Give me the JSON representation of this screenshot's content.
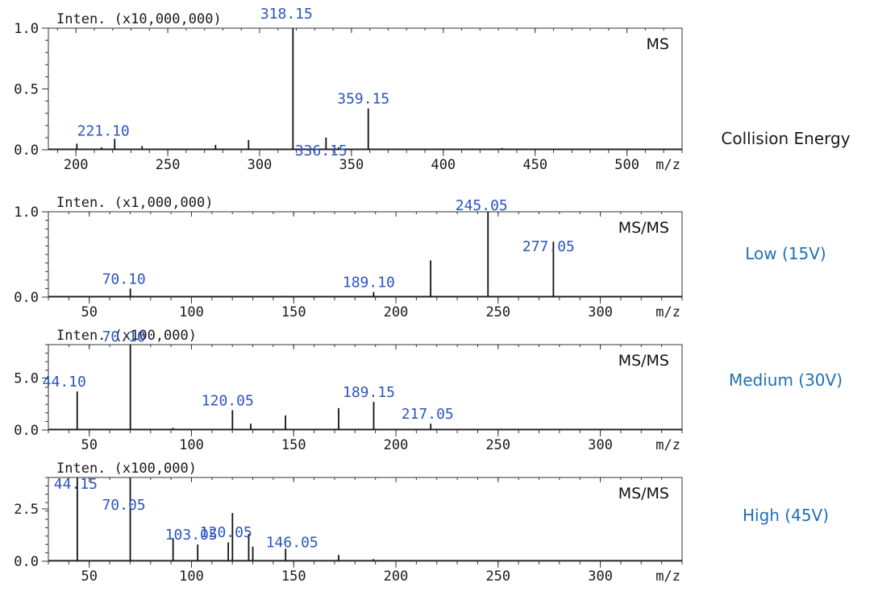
{
  "side_panel": {
    "title": "Collision Energy",
    "levels": [
      "Low (15V)",
      "Medium (30V)",
      "High (45V)"
    ]
  },
  "colors": {
    "trace": "#111111",
    "peak_label": "#2d55c0",
    "energy_label": "#1f6fb8"
  },
  "chart_data": [
    {
      "type": "line",
      "mode_label": "MS",
      "ylabel": "Inten. (x10,000,000)",
      "xlabel": "m/z",
      "xlim": [
        185,
        530
      ],
      "ylim": [
        0,
        1.0
      ],
      "y_ticks": [
        {
          "v": 0,
          "t": "0.0"
        },
        {
          "v": 0.5,
          "t": "0.5"
        },
        {
          "v": 1.0,
          "t": "1.0"
        }
      ],
      "x_ticks": [
        200,
        250,
        300,
        350,
        400,
        450,
        500
      ],
      "peaks": [
        {
          "x": 200.5,
          "y": 0.05
        },
        {
          "x": 214,
          "y": 0.02
        },
        {
          "x": 221.1,
          "y": 0.09
        },
        {
          "x": 236,
          "y": 0.03
        },
        {
          "x": 276,
          "y": 0.04
        },
        {
          "x": 294,
          "y": 0.08
        },
        {
          "x": 318.15,
          "y": 1.0
        },
        {
          "x": 336.15,
          "y": 0.1
        },
        {
          "x": 359.15,
          "y": 0.34
        },
        {
          "x": 343,
          "y": 0.02
        },
        {
          "x": 432,
          "y": 0.015
        }
      ],
      "peak_labels": [
        {
          "text": "221.10",
          "x": 221.1,
          "y": 0.09
        },
        {
          "text": "318.15",
          "x": 318.15,
          "y": 1.0
        },
        {
          "text": "336.15",
          "x": 336.15,
          "y": 0.1
        },
        {
          "text": "359.15",
          "x": 359.15,
          "y": 0.34
        }
      ]
    },
    {
      "type": "line",
      "mode_label": "MS/MS",
      "ylabel": "Inten. (x1,000,000)",
      "xlabel": "m/z",
      "xlim": [
        30,
        340
      ],
      "ylim": [
        0,
        1.0
      ],
      "y_ticks": [
        {
          "v": 0,
          "t": "0.0"
        },
        {
          "v": 1.0,
          "t": "1.0"
        }
      ],
      "x_ticks": [
        50,
        100,
        150,
        200,
        250,
        300
      ],
      "peaks": [
        {
          "x": 70.1,
          "y": 0.1
        },
        {
          "x": 146,
          "y": 0.015
        },
        {
          "x": 189.1,
          "y": 0.06
        },
        {
          "x": 217,
          "y": 0.43
        },
        {
          "x": 245.05,
          "y": 1.0
        },
        {
          "x": 277.05,
          "y": 0.65
        }
      ],
      "peak_labels": [
        {
          "text": "70.10",
          "x": 70.1,
          "y": 0.1
        },
        {
          "text": "189.10",
          "x": 189.1,
          "y": 0.06
        },
        {
          "text": "245.05",
          "x": 245.05,
          "y": 1.0
        },
        {
          "text": "277.05",
          "x": 277.05,
          "y": 0.65
        }
      ]
    },
    {
      "type": "line",
      "mode_label": "MS/MS",
      "ylabel": "Inten. (x100,000)",
      "xlabel": "m/z",
      "xlim": [
        30,
        340
      ],
      "ylim": [
        0,
        8.2
      ],
      "y_ticks": [
        {
          "v": 0,
          "t": "0.0"
        },
        {
          "v": 5.0,
          "t": "5.0"
        }
      ],
      "x_ticks": [
        50,
        100,
        150,
        200,
        250,
        300
      ],
      "peaks": [
        {
          "x": 44.1,
          "y": 3.7
        },
        {
          "x": 70.1,
          "y": 8.2
        },
        {
          "x": 91,
          "y": 0.2
        },
        {
          "x": 120.05,
          "y": 1.9
        },
        {
          "x": 129,
          "y": 0.6
        },
        {
          "x": 146,
          "y": 1.4
        },
        {
          "x": 172,
          "y": 2.1
        },
        {
          "x": 189.15,
          "y": 2.7
        },
        {
          "x": 217.05,
          "y": 0.6
        },
        {
          "x": 245,
          "y": 0.1
        }
      ],
      "peak_labels": [
        {
          "text": "44.10",
          "x": 44.1,
          "y": 3.7
        },
        {
          "text": "70.10",
          "x": 70.1,
          "y": 8.2
        },
        {
          "text": "120.05",
          "x": 120.05,
          "y": 1.9
        },
        {
          "text": "189.15",
          "x": 189.15,
          "y": 2.7
        },
        {
          "text": "217.05",
          "x": 217.05,
          "y": 0.6
        }
      ]
    },
    {
      "type": "line",
      "mode_label": "MS/MS",
      "ylabel": "Inten. (x100,000)",
      "xlabel": "m/z",
      "xlim": [
        30,
        340
      ],
      "ylim": [
        0,
        4.0
      ],
      "y_ticks": [
        {
          "v": 0,
          "t": "0.0"
        },
        {
          "v": 2.5,
          "t": "2.5"
        }
      ],
      "x_ticks": [
        50,
        100,
        150,
        200,
        250,
        300
      ],
      "peaks": [
        {
          "x": 44.15,
          "y": 4.0
        },
        {
          "x": 70.05,
          "y": 4.0
        },
        {
          "x": 91,
          "y": 1.1
        },
        {
          "x": 103.05,
          "y": 0.8
        },
        {
          "x": 118,
          "y": 0.9
        },
        {
          "x": 120.05,
          "y": 2.3
        },
        {
          "x": 128,
          "y": 1.3
        },
        {
          "x": 130,
          "y": 0.7
        },
        {
          "x": 146.05,
          "y": 0.6
        },
        {
          "x": 172,
          "y": 0.3
        },
        {
          "x": 189,
          "y": 0.1
        }
      ],
      "peak_labels": [
        {
          "text": "44.15",
          "x": 44.15,
          "y": 4.0
        },
        {
          "text": "70.05",
          "x": 70.05,
          "y": 4.0
        },
        {
          "text": "103.05",
          "x": 103.05,
          "y": 0.8
        },
        {
          "text": "120.05",
          "x": 120.05,
          "y": 2.3
        },
        {
          "text": "146.05",
          "x": 146.05,
          "y": 0.6
        }
      ]
    }
  ]
}
